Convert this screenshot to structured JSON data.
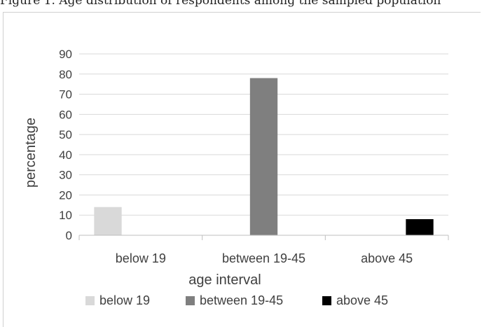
{
  "caption_fragment": "Figure 1. Age distribution of respondents among the sampled population",
  "chart_data": {
    "type": "bar",
    "title": "",
    "xlabel": "age interval",
    "ylabel": "percentage",
    "categories": [
      "below 19",
      "between 19-45",
      "above  45"
    ],
    "series": [
      {
        "name": "below 19",
        "values": [
          14,
          null,
          null
        ],
        "color": "#d9d9d9"
      },
      {
        "name": "between 19-45",
        "values": [
          null,
          78,
          null
        ],
        "color": "#7f7f7f"
      },
      {
        "name": "above 45",
        "values": [
          null,
          null,
          8
        ],
        "color": "#000000"
      }
    ],
    "ylim": [
      0,
      90
    ],
    "yticks": [
      "0",
      "10",
      "20",
      "30",
      "40",
      "50",
      "60",
      "70",
      "80",
      "90"
    ],
    "grid": true,
    "legend_position": "bottom"
  }
}
